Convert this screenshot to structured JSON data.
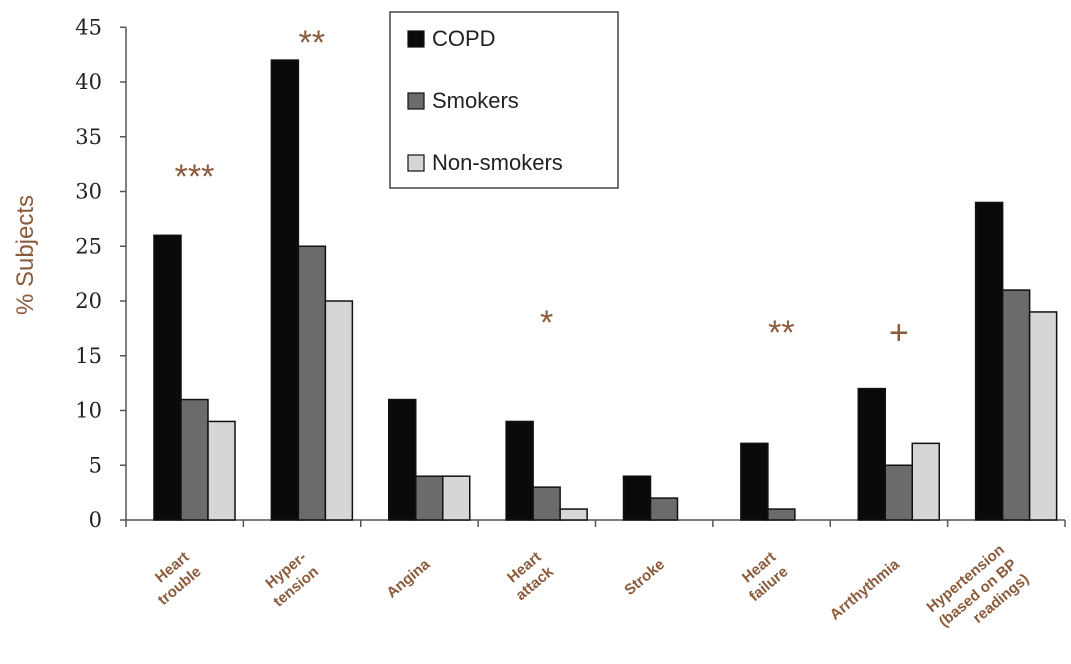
{
  "chart_data": {
    "type": "bar",
    "title": "",
    "xlabel": "",
    "ylabel": "% Subjects",
    "ylim": [
      0,
      45
    ],
    "yticks": [
      "0",
      "5",
      "10",
      "15",
      "20",
      "25",
      "30",
      "35",
      "40",
      "45"
    ],
    "grid": false,
    "legend_position": "top-center",
    "categories": [
      [
        "Heart",
        "trouble"
      ],
      [
        "Hyper-",
        "tension"
      ],
      [
        "Angina"
      ],
      [
        "Heart",
        "attack"
      ],
      [
        "Stroke"
      ],
      [
        "Heart",
        "failure"
      ],
      [
        "Arrthythmia"
      ],
      [
        "Hypertension",
        "(based on BP",
        "readings)"
      ]
    ],
    "series": [
      {
        "name": "COPD",
        "color": "#0a0a0a",
        "values": [
          26,
          42,
          11,
          9,
          4,
          7,
          12,
          29
        ]
      },
      {
        "name": "Smokers",
        "color": "#6b6b6b",
        "values": [
          11,
          25,
          4,
          3,
          2,
          1,
          5,
          21
        ]
      },
      {
        "name": "Non-smokers",
        "color": "#d6d6d6",
        "values": [
          9,
          20,
          4,
          1,
          0,
          0,
          7,
          19
        ]
      }
    ],
    "significance": [
      "***",
      "**",
      "",
      "*",
      "",
      "**",
      "+",
      ""
    ]
  }
}
